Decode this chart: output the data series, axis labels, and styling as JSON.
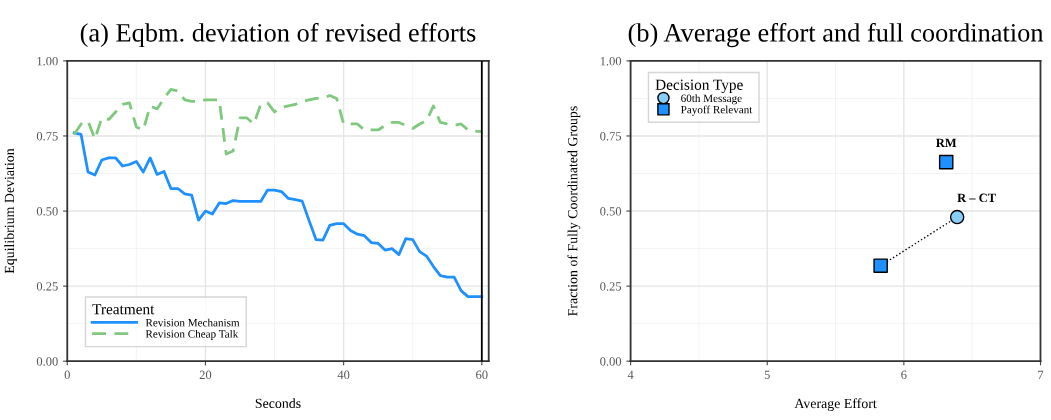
{
  "chart_data": [
    {
      "type": "line",
      "title": "(a) Eqbm. deviation of revised efforts",
      "xlabel": "Seconds",
      "ylabel": "Equilibrium Deviation",
      "legend_title": "Treatment",
      "legend": "bottom left",
      "grid": true,
      "xlim": [
        0,
        61
      ],
      "xticks": [
        0,
        20,
        40,
        60
      ],
      "ylim": [
        0,
        1
      ],
      "yticks": [
        {
          "value": 0,
          "label": "0.00"
        },
        {
          "value": 0.25,
          "label": "0.25"
        },
        {
          "value": 0.5,
          "label": "0.50"
        },
        {
          "value": 0.75,
          "label": "0.75"
        },
        {
          "value": 1,
          "label": "1.00"
        }
      ],
      "x": [
        1,
        2,
        3,
        4,
        5,
        6,
        7,
        8,
        9,
        10,
        11,
        12,
        13,
        14,
        15,
        16,
        17,
        18,
        19,
        20,
        21,
        22,
        23,
        24,
        25,
        26,
        27,
        28,
        29,
        30,
        31,
        32,
        33,
        34,
        35,
        36,
        37,
        38,
        39,
        40,
        41,
        42,
        43,
        44,
        45,
        46,
        47,
        48,
        49,
        50,
        51,
        52,
        53,
        54,
        55,
        56,
        57,
        58,
        59,
        60
      ],
      "ref_lines": [
        {
          "axis": "x",
          "value": 60,
          "label": null,
          "color": "#000000",
          "line_style": "solid"
        }
      ],
      "series": [
        {
          "name": "Revision Mechanism",
          "color": "#1e90ff",
          "line_style": "solid",
          "values": [
            0.76,
            0.755,
            0.63,
            0.62,
            0.67,
            0.677,
            0.677,
            0.65,
            0.655,
            0.665,
            0.63,
            0.677,
            0.622,
            0.632,
            0.575,
            0.575,
            0.557,
            0.553,
            0.47,
            0.5,
            0.49,
            0.527,
            0.525,
            0.535,
            0.532,
            0.532,
            0.532,
            0.532,
            0.57,
            0.57,
            0.565,
            0.542,
            0.538,
            0.533,
            0.468,
            0.405,
            0.403,
            0.452,
            0.458,
            0.458,
            0.435,
            0.423,
            0.418,
            0.395,
            0.392,
            0.37,
            0.375,
            0.355,
            0.408,
            0.405,
            0.365,
            0.35,
            0.315,
            0.285,
            0.28,
            0.28,
            0.235,
            0.215,
            0.215,
            0.215
          ]
        },
        {
          "name": "Revision Cheap Talk",
          "color": "#7fc97f",
          "line_style": "dashed",
          "values": [
            0.755,
            0.79,
            0.8,
            0.74,
            0.81,
            0.805,
            0.83,
            0.855,
            0.86,
            0.78,
            0.77,
            0.85,
            0.84,
            0.875,
            0.905,
            0.9,
            0.87,
            0.865,
            0.865,
            0.87,
            0.87,
            0.87,
            0.69,
            0.7,
            0.81,
            0.81,
            0.79,
            0.855,
            0.86,
            0.83,
            0.845,
            0.85,
            0.855,
            0.865,
            0.87,
            0.875,
            0.875,
            0.885,
            0.875,
            0.79,
            0.79,
            0.79,
            0.77,
            0.77,
            0.77,
            0.785,
            0.795,
            0.795,
            0.785,
            0.775,
            0.79,
            0.8,
            0.85,
            0.795,
            0.79,
            0.785,
            0.79,
            0.77,
            0.765,
            0.765
          ]
        }
      ]
    },
    {
      "type": "scatter",
      "title": "(b) Average effort and full coordination",
      "xlabel": "Average Effort",
      "ylabel": "Fraction of Fully Coordinated Groups",
      "legend_title": "Decision Type",
      "legend": "top left",
      "grid": true,
      "xlim": [
        4,
        7
      ],
      "xticks": [
        4,
        5,
        6,
        7
      ],
      "ylim": [
        0,
        1
      ],
      "yticks": [
        {
          "value": 0,
          "label": "0.00"
        },
        {
          "value": 0.25,
          "label": "0.25"
        },
        {
          "value": 0.5,
          "label": "0.50"
        },
        {
          "value": 0.75,
          "label": "0.75"
        },
        {
          "value": 1,
          "label": "1.00"
        }
      ],
      "annotations": [
        {
          "text": "RM",
          "x": 6.31,
          "y": 0.663
        },
        {
          "text": "R – CT",
          "x": 6.39,
          "y": 0.48
        }
      ],
      "series": [
        {
          "type": "line",
          "color": "#000000",
          "line_style": "dotted",
          "marker": "none",
          "x": [
            5.83,
            6.39
          ],
          "values": [
            0.318,
            0.48
          ]
        },
        {
          "name": "60th Message",
          "color": "#87cefa",
          "marker": "circle",
          "x": [
            6.39
          ],
          "values": [
            0.48
          ]
        },
        {
          "name": "Payoff Relevant",
          "color": "#1e90ff",
          "marker": "square",
          "x": [
            6.31,
            5.83
          ],
          "values": [
            0.663,
            0.318
          ]
        }
      ]
    }
  ]
}
